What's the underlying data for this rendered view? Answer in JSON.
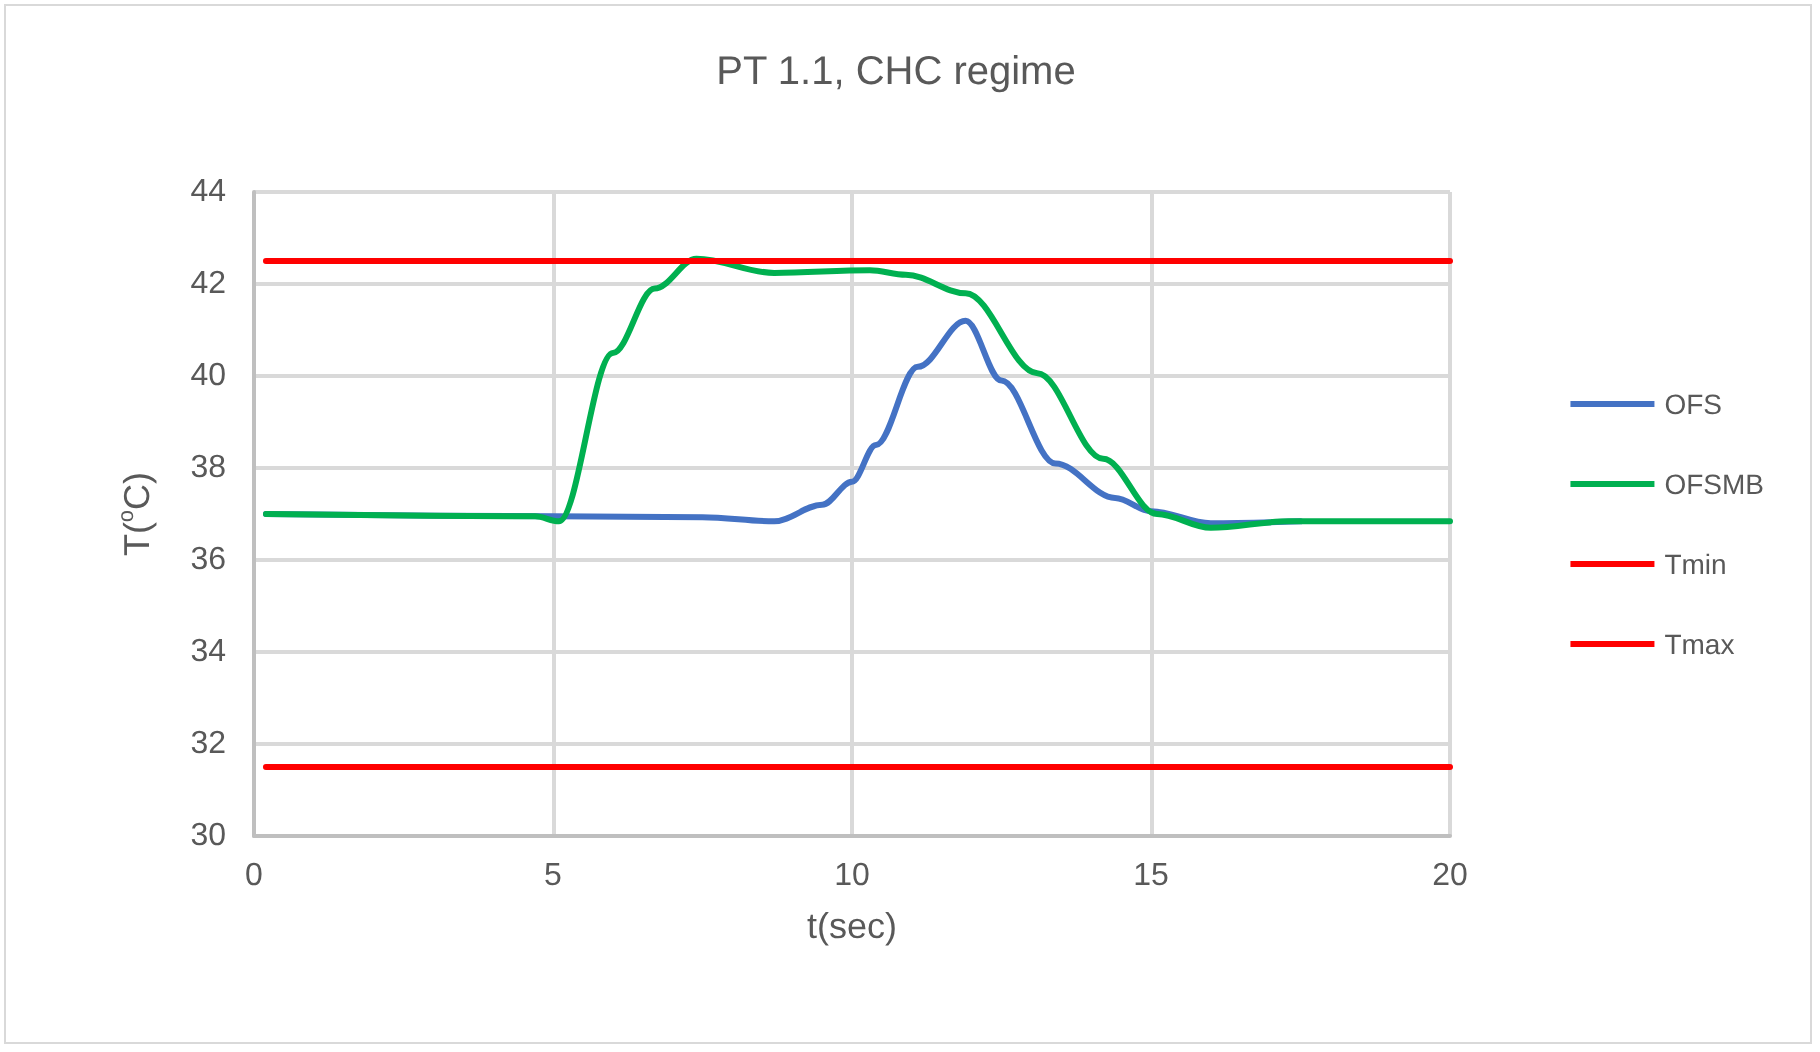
{
  "chart_data": {
    "type": "line",
    "title": "PT 1.1, CHC regime",
    "xlabel": "t(sec)",
    "ylabel": "T($^{o}$C)",
    "xlim": [
      0,
      20
    ],
    "xticks": [
      0,
      5,
      10,
      15,
      20
    ],
    "ylim": [
      30,
      44
    ],
    "yticks": [
      30,
      32,
      34,
      36,
      38,
      40,
      42,
      44
    ],
    "grid": true,
    "legend": "right",
    "marker": "none",
    "line_style": "solid",
    "series": [
      {
        "name": "OFS",
        "color": "#4472c4",
        "x": [
          0.2,
          5,
          7.5,
          8.7,
          9.5,
          10,
          10.4,
          11.1,
          11.9,
          12.5,
          13.4,
          14.4,
          15,
          16,
          17.5
        ],
        "values": [
          37.0,
          36.95,
          36.93,
          36.84,
          37.2,
          37.7,
          38.5,
          40.2,
          41.2,
          39.9,
          38.1,
          37.35,
          37.06,
          36.8,
          36.84
        ]
      },
      {
        "name": "OFSMB",
        "color": "#00b050",
        "x": [
          0.2,
          4.7,
          5.1,
          6.0,
          6.7,
          7.4,
          8.7,
          10.3,
          10.9,
          11.9,
          13.1,
          14.2,
          15.1,
          16.0,
          17.3,
          20
        ],
        "values": [
          37.0,
          36.95,
          36.84,
          40.5,
          41.9,
          42.55,
          42.24,
          42.3,
          42.2,
          41.8,
          40.06,
          38.2,
          37.0,
          36.7,
          36.84,
          36.84
        ]
      },
      {
        "name": "Tmin",
        "color": "#ff0000",
        "x": [
          0.2,
          20
        ],
        "values": [
          31.5,
          31.5
        ]
      },
      {
        "name": "Tmax",
        "color": "#ff0000",
        "x": [
          0.2,
          20
        ],
        "values": [
          42.5,
          42.5
        ]
      }
    ]
  }
}
